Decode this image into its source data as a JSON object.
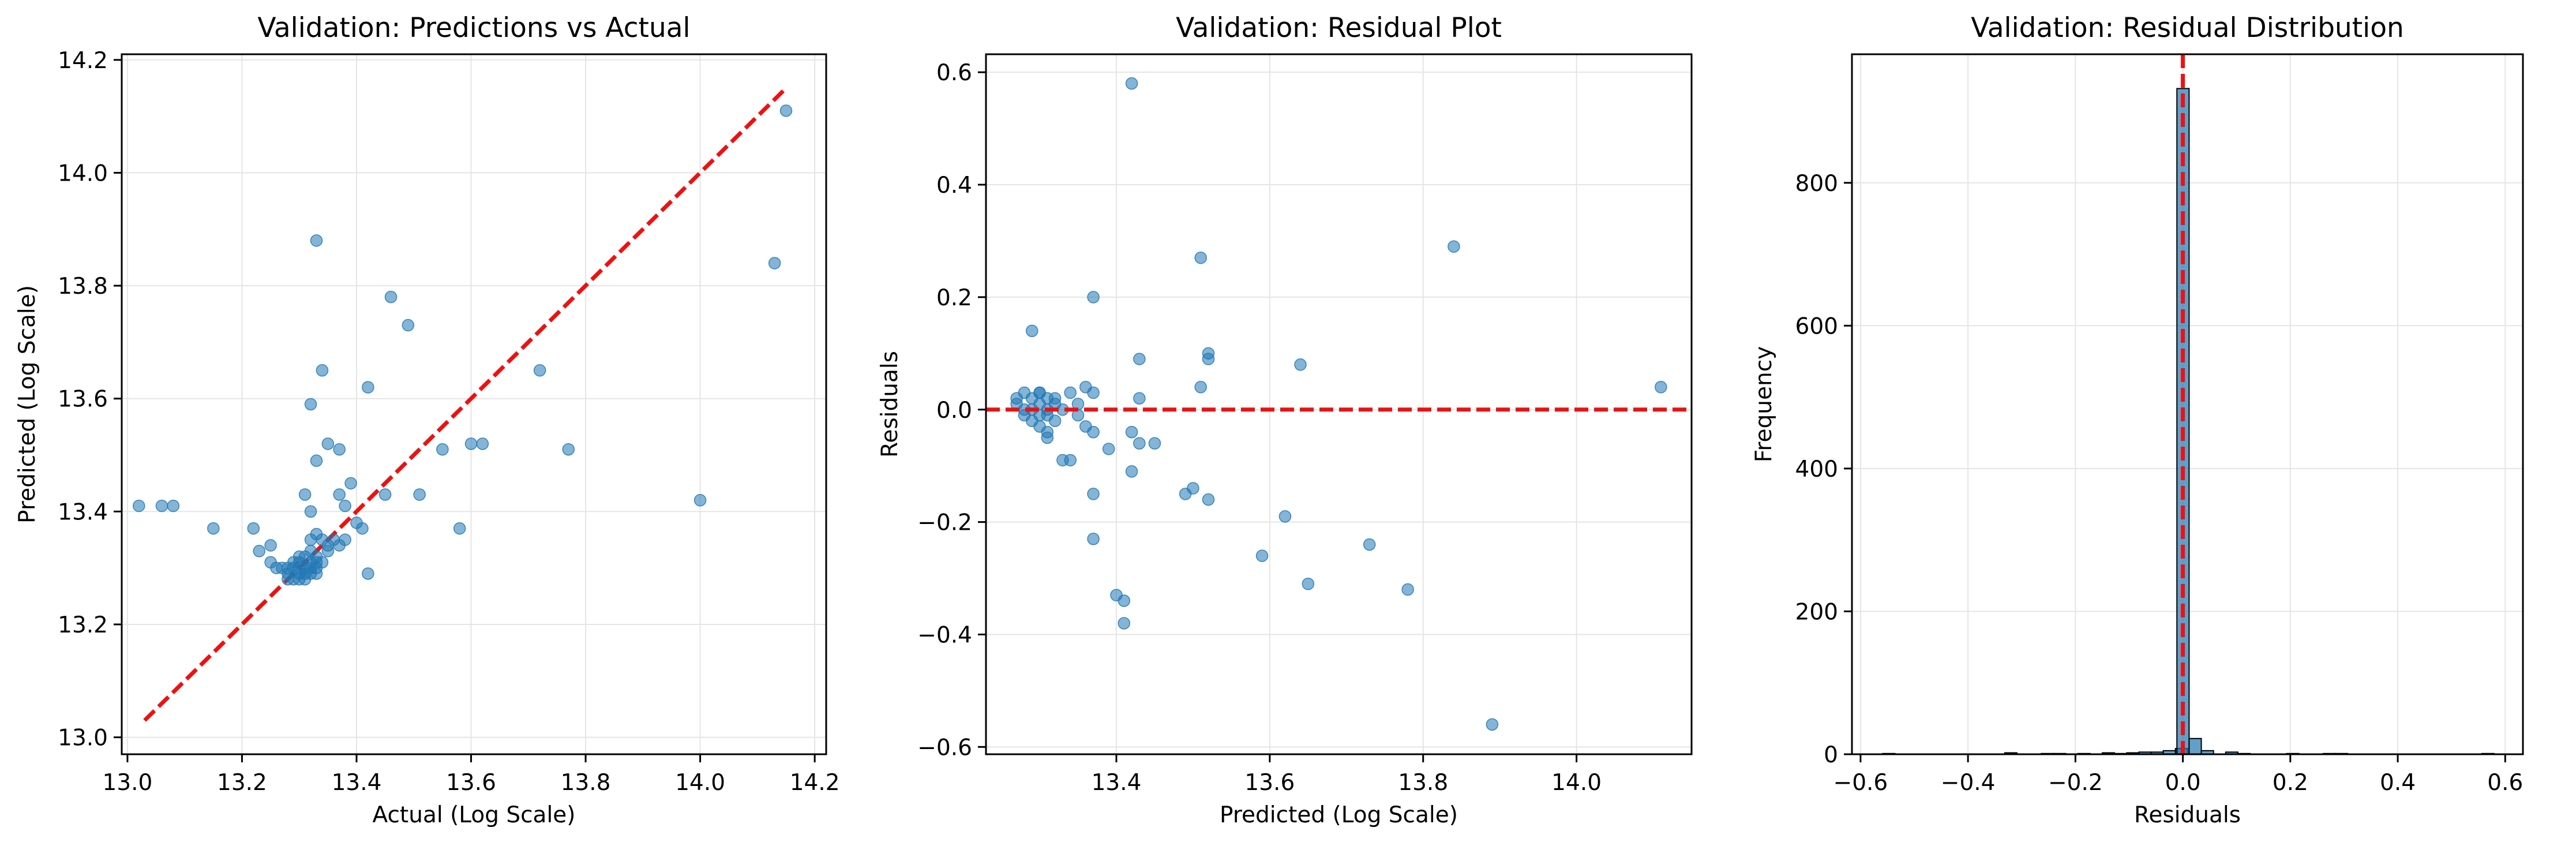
{
  "colors": {
    "point": "#1f77b4",
    "reference": "#ee1111",
    "grid": "#e5e5e5",
    "axis": "#000000"
  },
  "chart_data": [
    {
      "type": "scatter",
      "title": "Validation: Predictions vs Actual",
      "xlabel": "Actual (Log Scale)",
      "ylabel": "Predicted (Log Scale)",
      "xlim": [
        12.99,
        14.22
      ],
      "ylim": [
        12.97,
        14.21
      ],
      "xticks": [
        13.0,
        13.2,
        13.4,
        13.6,
        13.8,
        14.0,
        14.2
      ],
      "xtick_labels": [
        "13.0",
        "13.2",
        "13.4",
        "13.6",
        "13.8",
        "14.0",
        "14.2"
      ],
      "yticks": [
        13.0,
        13.2,
        13.4,
        13.6,
        13.8,
        14.0,
        14.2
      ],
      "ytick_labels": [
        "13.0",
        "13.2",
        "13.4",
        "13.6",
        "13.8",
        "14.0",
        "14.2"
      ],
      "grid": true,
      "reference_line": {
        "kind": "diagonal",
        "x": [
          13.03,
          14.15
        ],
        "y": [
          13.03,
          14.15
        ]
      },
      "points": [
        [
          13.02,
          13.41
        ],
        [
          13.06,
          13.41
        ],
        [
          13.08,
          13.41
        ],
        [
          13.15,
          13.37
        ],
        [
          13.22,
          13.37
        ],
        [
          13.23,
          13.33
        ],
        [
          13.25,
          13.34
        ],
        [
          13.25,
          13.31
        ],
        [
          13.26,
          13.3
        ],
        [
          13.27,
          13.3
        ],
        [
          13.28,
          13.29
        ],
        [
          13.28,
          13.28
        ],
        [
          13.29,
          13.3
        ],
        [
          13.29,
          13.28
        ],
        [
          13.3,
          13.31
        ],
        [
          13.3,
          13.29
        ],
        [
          13.3,
          13.28
        ],
        [
          13.3,
          13.3
        ],
        [
          13.31,
          13.29
        ],
        [
          13.31,
          13.32
        ],
        [
          13.31,
          13.3
        ],
        [
          13.32,
          13.31
        ],
        [
          13.32,
          13.29
        ],
        [
          13.32,
          13.33
        ],
        [
          13.32,
          13.35
        ],
        [
          13.33,
          13.31
        ],
        [
          13.33,
          13.3
        ],
        [
          13.33,
          13.36
        ],
        [
          13.33,
          13.32
        ],
        [
          13.34,
          13.31
        ],
        [
          13.34,
          13.35
        ],
        [
          13.35,
          13.33
        ],
        [
          13.36,
          13.35
        ],
        [
          13.37,
          13.34
        ],
        [
          13.3,
          13.32
        ],
        [
          13.29,
          13.31
        ],
        [
          13.28,
          13.3
        ],
        [
          13.31,
          13.28
        ],
        [
          13.32,
          13.3
        ],
        [
          13.33,
          13.29
        ],
        [
          13.31,
          13.43
        ],
        [
          13.32,
          13.59
        ],
        [
          13.33,
          13.88
        ],
        [
          13.34,
          13.65
        ],
        [
          13.33,
          13.49
        ],
        [
          13.35,
          13.52
        ],
        [
          13.37,
          13.51
        ],
        [
          13.37,
          13.43
        ],
        [
          13.38,
          13.41
        ],
        [
          13.39,
          13.45
        ],
        [
          13.4,
          13.38
        ],
        [
          13.41,
          13.37
        ],
        [
          13.42,
          13.62
        ],
        [
          13.42,
          13.29
        ],
        [
          13.45,
          13.43
        ],
        [
          13.46,
          13.78
        ],
        [
          13.49,
          13.73
        ],
        [
          13.51,
          13.43
        ],
        [
          13.55,
          13.51
        ],
        [
          13.58,
          13.37
        ],
        [
          13.6,
          13.52
        ],
        [
          13.62,
          13.52
        ],
        [
          13.72,
          13.65
        ],
        [
          13.77,
          13.51
        ],
        [
          14.0,
          13.42
        ],
        [
          14.13,
          13.84
        ],
        [
          14.15,
          14.11
        ],
        [
          13.38,
          13.35
        ],
        [
          13.35,
          13.34
        ],
        [
          13.32,
          13.4
        ]
      ]
    },
    {
      "type": "scatter",
      "title": "Validation: Residual Plot",
      "xlabel": "Predicted (Log Scale)",
      "ylabel": "Residuals",
      "xlim": [
        13.23,
        14.15
      ],
      "ylim": [
        -0.613,
        0.632
      ],
      "xticks": [
        13.4,
        13.6,
        13.8,
        14.0
      ],
      "xtick_labels": [
        "13.4",
        "13.6",
        "13.8",
        "14.0"
      ],
      "yticks": [
        -0.6,
        -0.4,
        -0.2,
        0.0,
        0.2,
        0.4,
        0.6
      ],
      "ytick_labels": [
        "−0.6",
        "−0.4",
        "−0.2",
        "0.0",
        "0.2",
        "0.4",
        "0.6"
      ],
      "grid": true,
      "reference_line": {
        "kind": "horizontal",
        "y": 0
      },
      "points": [
        [
          13.27,
          0.01
        ],
        [
          13.27,
          0.02
        ],
        [
          13.28,
          0.03
        ],
        [
          13.28,
          0.0
        ],
        [
          13.28,
          -0.01
        ],
        [
          13.29,
          0.02
        ],
        [
          13.29,
          0.0
        ],
        [
          13.29,
          -0.02
        ],
        [
          13.3,
          0.03
        ],
        [
          13.3,
          0.01
        ],
        [
          13.3,
          -0.01
        ],
        [
          13.3,
          -0.03
        ],
        [
          13.31,
          0.02
        ],
        [
          13.31,
          0.0
        ],
        [
          13.31,
          -0.01
        ],
        [
          13.32,
          0.02
        ],
        [
          13.32,
          -0.02
        ],
        [
          13.29,
          0.14
        ],
        [
          13.3,
          0.03
        ],
        [
          13.31,
          -0.04
        ],
        [
          13.31,
          -0.05
        ],
        [
          13.32,
          0.01
        ],
        [
          13.33,
          0.0
        ],
        [
          13.33,
          -0.09
        ],
        [
          13.34,
          -0.09
        ],
        [
          13.34,
          0.03
        ],
        [
          13.35,
          0.01
        ],
        [
          13.35,
          -0.01
        ],
        [
          13.36,
          -0.03
        ],
        [
          13.36,
          0.04
        ],
        [
          13.37,
          -0.04
        ],
        [
          13.37,
          0.2
        ],
        [
          13.37,
          0.03
        ],
        [
          13.37,
          -0.15
        ],
        [
          13.37,
          -0.23
        ],
        [
          13.39,
          -0.07
        ],
        [
          13.4,
          -0.33
        ],
        [
          13.41,
          -0.34
        ],
        [
          13.41,
          -0.38
        ],
        [
          13.42,
          -0.04
        ],
        [
          13.42,
          0.58
        ],
        [
          13.42,
          -0.11
        ],
        [
          13.43,
          0.09
        ],
        [
          13.43,
          0.02
        ],
        [
          13.43,
          -0.06
        ],
        [
          13.45,
          -0.06
        ],
        [
          13.49,
          -0.15
        ],
        [
          13.5,
          -0.14
        ],
        [
          13.51,
          0.04
        ],
        [
          13.51,
          0.27
        ],
        [
          13.52,
          -0.16
        ],
        [
          13.52,
          0.09
        ],
        [
          13.52,
          0.1
        ],
        [
          13.59,
          -0.26
        ],
        [
          13.62,
          -0.19
        ],
        [
          13.64,
          0.08
        ],
        [
          13.65,
          -0.31
        ],
        [
          13.73,
          -0.24
        ],
        [
          13.78,
          -0.32
        ],
        [
          13.84,
          0.29
        ],
        [
          13.89,
          -0.56
        ],
        [
          14.11,
          0.04
        ]
      ]
    },
    {
      "type": "bar",
      "title": "Validation: Residual Distribution",
      "xlabel": "Residuals",
      "ylabel": "Frequency",
      "xlim": [
        -0.616,
        0.633
      ],
      "ylim": [
        0,
        980
      ],
      "xticks": [
        -0.6,
        -0.4,
        -0.2,
        0.0,
        0.2,
        0.4,
        0.6
      ],
      "xtick_labels": [
        "−0.6",
        "−0.4",
        "−0.2",
        "0.0",
        "0.2",
        "0.4",
        "0.6"
      ],
      "yticks": [
        0,
        200,
        400,
        600,
        800
      ],
      "ytick_labels": [
        "0",
        "200",
        "400",
        "600",
        "800"
      ],
      "grid": true,
      "reference_line": {
        "kind": "vertical",
        "x": 0
      },
      "bin_width": 0.0227,
      "bins": [
        {
          "left": -0.5587,
          "count": 1
        },
        {
          "left": -0.3316,
          "count": 2
        },
        {
          "left": -0.2635,
          "count": 1
        },
        {
          "left": -0.2408,
          "count": 1
        },
        {
          "left": -0.1954,
          "count": 1
        },
        {
          "left": -0.15,
          "count": 2
        },
        {
          "left": -0.1273,
          "count": 1
        },
        {
          "left": -0.1046,
          "count": 2
        },
        {
          "left": -0.0819,
          "count": 3
        },
        {
          "left": -0.0592,
          "count": 3
        },
        {
          "left": -0.0365,
          "count": 5
        },
        {
          "left": -0.0138,
          "count": 8
        },
        {
          "left": -0.0111,
          "count": 932
        },
        {
          "left": 0.0116,
          "count": 22
        },
        {
          "left": 0.0343,
          "count": 5
        },
        {
          "left": 0.0797,
          "count": 3
        },
        {
          "left": 0.1024,
          "count": 1
        },
        {
          "left": 0.1932,
          "count": 1
        },
        {
          "left": 0.2613,
          "count": 1
        },
        {
          "left": 0.284,
          "count": 1
        },
        {
          "left": 0.5565,
          "count": 1
        }
      ]
    }
  ]
}
